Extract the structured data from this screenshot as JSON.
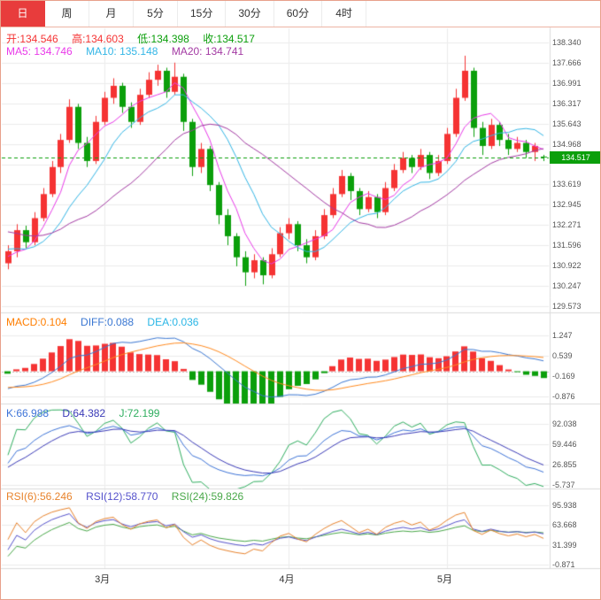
{
  "tabs": [
    {
      "label": "日",
      "active": true
    },
    {
      "label": "周",
      "active": false
    },
    {
      "label": "月",
      "active": false
    },
    {
      "label": "5分",
      "active": false
    },
    {
      "label": "15分",
      "active": false
    },
    {
      "label": "30分",
      "active": false
    },
    {
      "label": "60分",
      "active": false
    },
    {
      "label": "4时",
      "active": false
    }
  ],
  "main": {
    "ohlc": {
      "open": "开:134.546",
      "high": "高:134.603",
      "low": "低:134.398",
      "close": "收:134.517"
    },
    "ma": {
      "ma5": "MA5: 134.746",
      "ma10": "MA10: 135.148",
      "ma20": "MA20: 134.741"
    }
  },
  "macd_row": {
    "macd": "MACD:0.104",
    "diff": "DIFF:0.088",
    "dea": "DEA:0.036"
  },
  "kdj_row": {
    "k": "K:66.988",
    "d": "D:64.382",
    "j": "J:72.199"
  },
  "rsi_row": {
    "rsi6": "RSI(6):56.246",
    "rsi12": "RSI(12):58.770",
    "rsi24": "RSI(24):59.826"
  },
  "price_badge": "134.517",
  "colors": {
    "up": "#f53333",
    "down": "#0b9f0b",
    "ma5": "#e93ae9",
    "ma10": "#33b6e6",
    "ma20": "#a33aa3",
    "macd_label": "#ff7e00",
    "diff": "#3a77d2",
    "dea": "#2ab6e6",
    "dea_line": "#ff8a1e",
    "k": "#3e74d8",
    "d": "#3b3bb8",
    "j": "#2fae5f",
    "rsi6": "#e8832c",
    "rsi12": "#5552cc",
    "rsi24": "#49a849",
    "grid": "#ececec",
    "separator": "#dcdcdc",
    "tab_active": "#e83c3c"
  },
  "chart_data": {
    "type": "candlestick",
    "title": "",
    "current_price": 134.517,
    "ohlc_values": {
      "open": 134.546,
      "high": 134.603,
      "low": 134.398,
      "close": 134.517
    },
    "indicator_values": {
      "ma5": 134.746,
      "ma10": 135.148,
      "ma20": 134.741,
      "macd": 0.104,
      "diff": 0.088,
      "dea": 0.036,
      "k": 66.988,
      "d": 64.382,
      "j": 72.199,
      "rsi6": 56.246,
      "rsi12": 58.77,
      "rsi24": 59.826
    },
    "panels": [
      {
        "name": "price",
        "range": [
          129.573,
          138.34
        ],
        "y_ticks": [
          "138.340",
          "137.666",
          "136.991",
          "136.317",
          "135.643",
          "134.968",
          "134.294",
          "133.619",
          "132.945",
          "132.271",
          "131.596",
          "130.922",
          "130.247",
          "129.573"
        ]
      },
      {
        "name": "macd",
        "range": [
          -0.876,
          1.247
        ],
        "y_ticks": [
          "1.247",
          "0.539",
          "-0.169",
          "-0.876"
        ]
      },
      {
        "name": "kdj",
        "range": [
          -5.737,
          92.038
        ],
        "y_ticks": [
          "92.038",
          "59.446",
          "26.855",
          "-5.737"
        ]
      },
      {
        "name": "rsi",
        "range": [
          -0.871,
          95.938
        ],
        "y_ticks": [
          "95.938",
          "63.668",
          "31.399",
          "-0.871"
        ]
      }
    ],
    "x_axis": {
      "labels": [
        "3月",
        "4月",
        "5月"
      ],
      "candle_index": [
        11,
        32,
        50
      ]
    },
    "candles": [
      [
        131.0,
        131.6,
        130.8,
        131.4
      ],
      [
        131.4,
        132.3,
        131.2,
        132.1
      ],
      [
        132.1,
        132.25,
        131.5,
        131.7
      ],
      [
        131.7,
        132.7,
        131.6,
        132.5
      ],
      [
        132.5,
        133.5,
        132.4,
        133.3
      ],
      [
        133.3,
        134.4,
        133.2,
        134.2
      ],
      [
        134.2,
        135.3,
        134.0,
        135.1
      ],
      [
        135.1,
        136.45,
        135.0,
        136.2
      ],
      [
        136.2,
        136.3,
        134.8,
        135.0
      ],
      [
        135.0,
        135.2,
        134.2,
        134.4
      ],
      [
        134.4,
        135.9,
        134.3,
        135.7
      ],
      [
        135.7,
        136.7,
        135.6,
        136.5
      ],
      [
        136.5,
        137.15,
        136.3,
        136.9
      ],
      [
        136.9,
        137.0,
        136.0,
        136.2
      ],
      [
        136.2,
        136.35,
        135.5,
        135.7
      ],
      [
        135.7,
        136.8,
        135.6,
        136.6
      ],
      [
        136.6,
        137.35,
        136.5,
        137.1
      ],
      [
        137.1,
        137.6,
        136.9,
        137.4
      ],
      [
        137.4,
        137.5,
        136.5,
        136.7
      ],
      [
        136.7,
        137.67,
        136.6,
        137.2
      ],
      [
        137.2,
        137.3,
        135.4,
        135.7
      ],
      [
        135.7,
        135.8,
        133.9,
        134.2
      ],
      [
        134.2,
        135.0,
        134.0,
        134.8
      ],
      [
        134.8,
        134.9,
        133.4,
        133.6
      ],
      [
        133.6,
        133.7,
        132.3,
        132.6
      ],
      [
        132.6,
        132.8,
        131.6,
        131.9
      ],
      [
        131.9,
        132.0,
        130.9,
        131.2
      ],
      [
        131.2,
        131.4,
        130.25,
        130.7
      ],
      [
        130.7,
        131.3,
        130.5,
        131.1
      ],
      [
        131.1,
        131.2,
        130.3,
        130.6
      ],
      [
        130.6,
        131.5,
        130.5,
        131.3
      ],
      [
        131.3,
        132.2,
        131.2,
        132.0
      ],
      [
        132.0,
        132.5,
        131.8,
        132.3
      ],
      [
        132.3,
        132.4,
        131.4,
        131.6
      ],
      [
        131.6,
        131.8,
        131.0,
        131.2
      ],
      [
        131.2,
        132.1,
        131.1,
        131.9
      ],
      [
        131.9,
        132.8,
        131.8,
        132.6
      ],
      [
        132.6,
        133.5,
        132.5,
        133.3
      ],
      [
        133.3,
        134.1,
        133.2,
        133.9
      ],
      [
        133.9,
        134.0,
        133.1,
        133.4
      ],
      [
        133.4,
        133.5,
        132.6,
        132.8
      ],
      [
        132.8,
        133.4,
        132.7,
        133.2
      ],
      [
        133.2,
        133.3,
        132.5,
        132.7
      ],
      [
        132.7,
        133.7,
        132.6,
        133.5
      ],
      [
        133.5,
        134.3,
        133.4,
        134.1
      ],
      [
        134.1,
        134.7,
        134.0,
        134.5
      ],
      [
        134.5,
        134.6,
        134.0,
        134.2
      ],
      [
        134.2,
        134.8,
        134.1,
        134.6
      ],
      [
        134.6,
        134.7,
        133.8,
        134.0
      ],
      [
        134.0,
        134.6,
        133.9,
        134.4
      ],
      [
        134.4,
        135.5,
        134.3,
        135.3
      ],
      [
        135.3,
        136.8,
        135.2,
        136.5
      ],
      [
        136.5,
        137.9,
        136.4,
        137.4
      ],
      [
        137.4,
        137.5,
        135.2,
        135.5
      ],
      [
        135.5,
        135.7,
        134.6,
        134.9
      ],
      [
        134.9,
        135.8,
        134.8,
        135.6
      ],
      [
        135.6,
        135.7,
        134.9,
        135.1
      ],
      [
        135.1,
        135.3,
        134.6,
        134.8
      ],
      [
        134.8,
        135.2,
        134.7,
        135.0
      ],
      [
        135.0,
        135.1,
        134.5,
        134.7
      ],
      [
        134.7,
        135.0,
        134.4,
        134.9
      ],
      [
        134.546,
        134.603,
        134.398,
        134.517
      ]
    ]
  }
}
